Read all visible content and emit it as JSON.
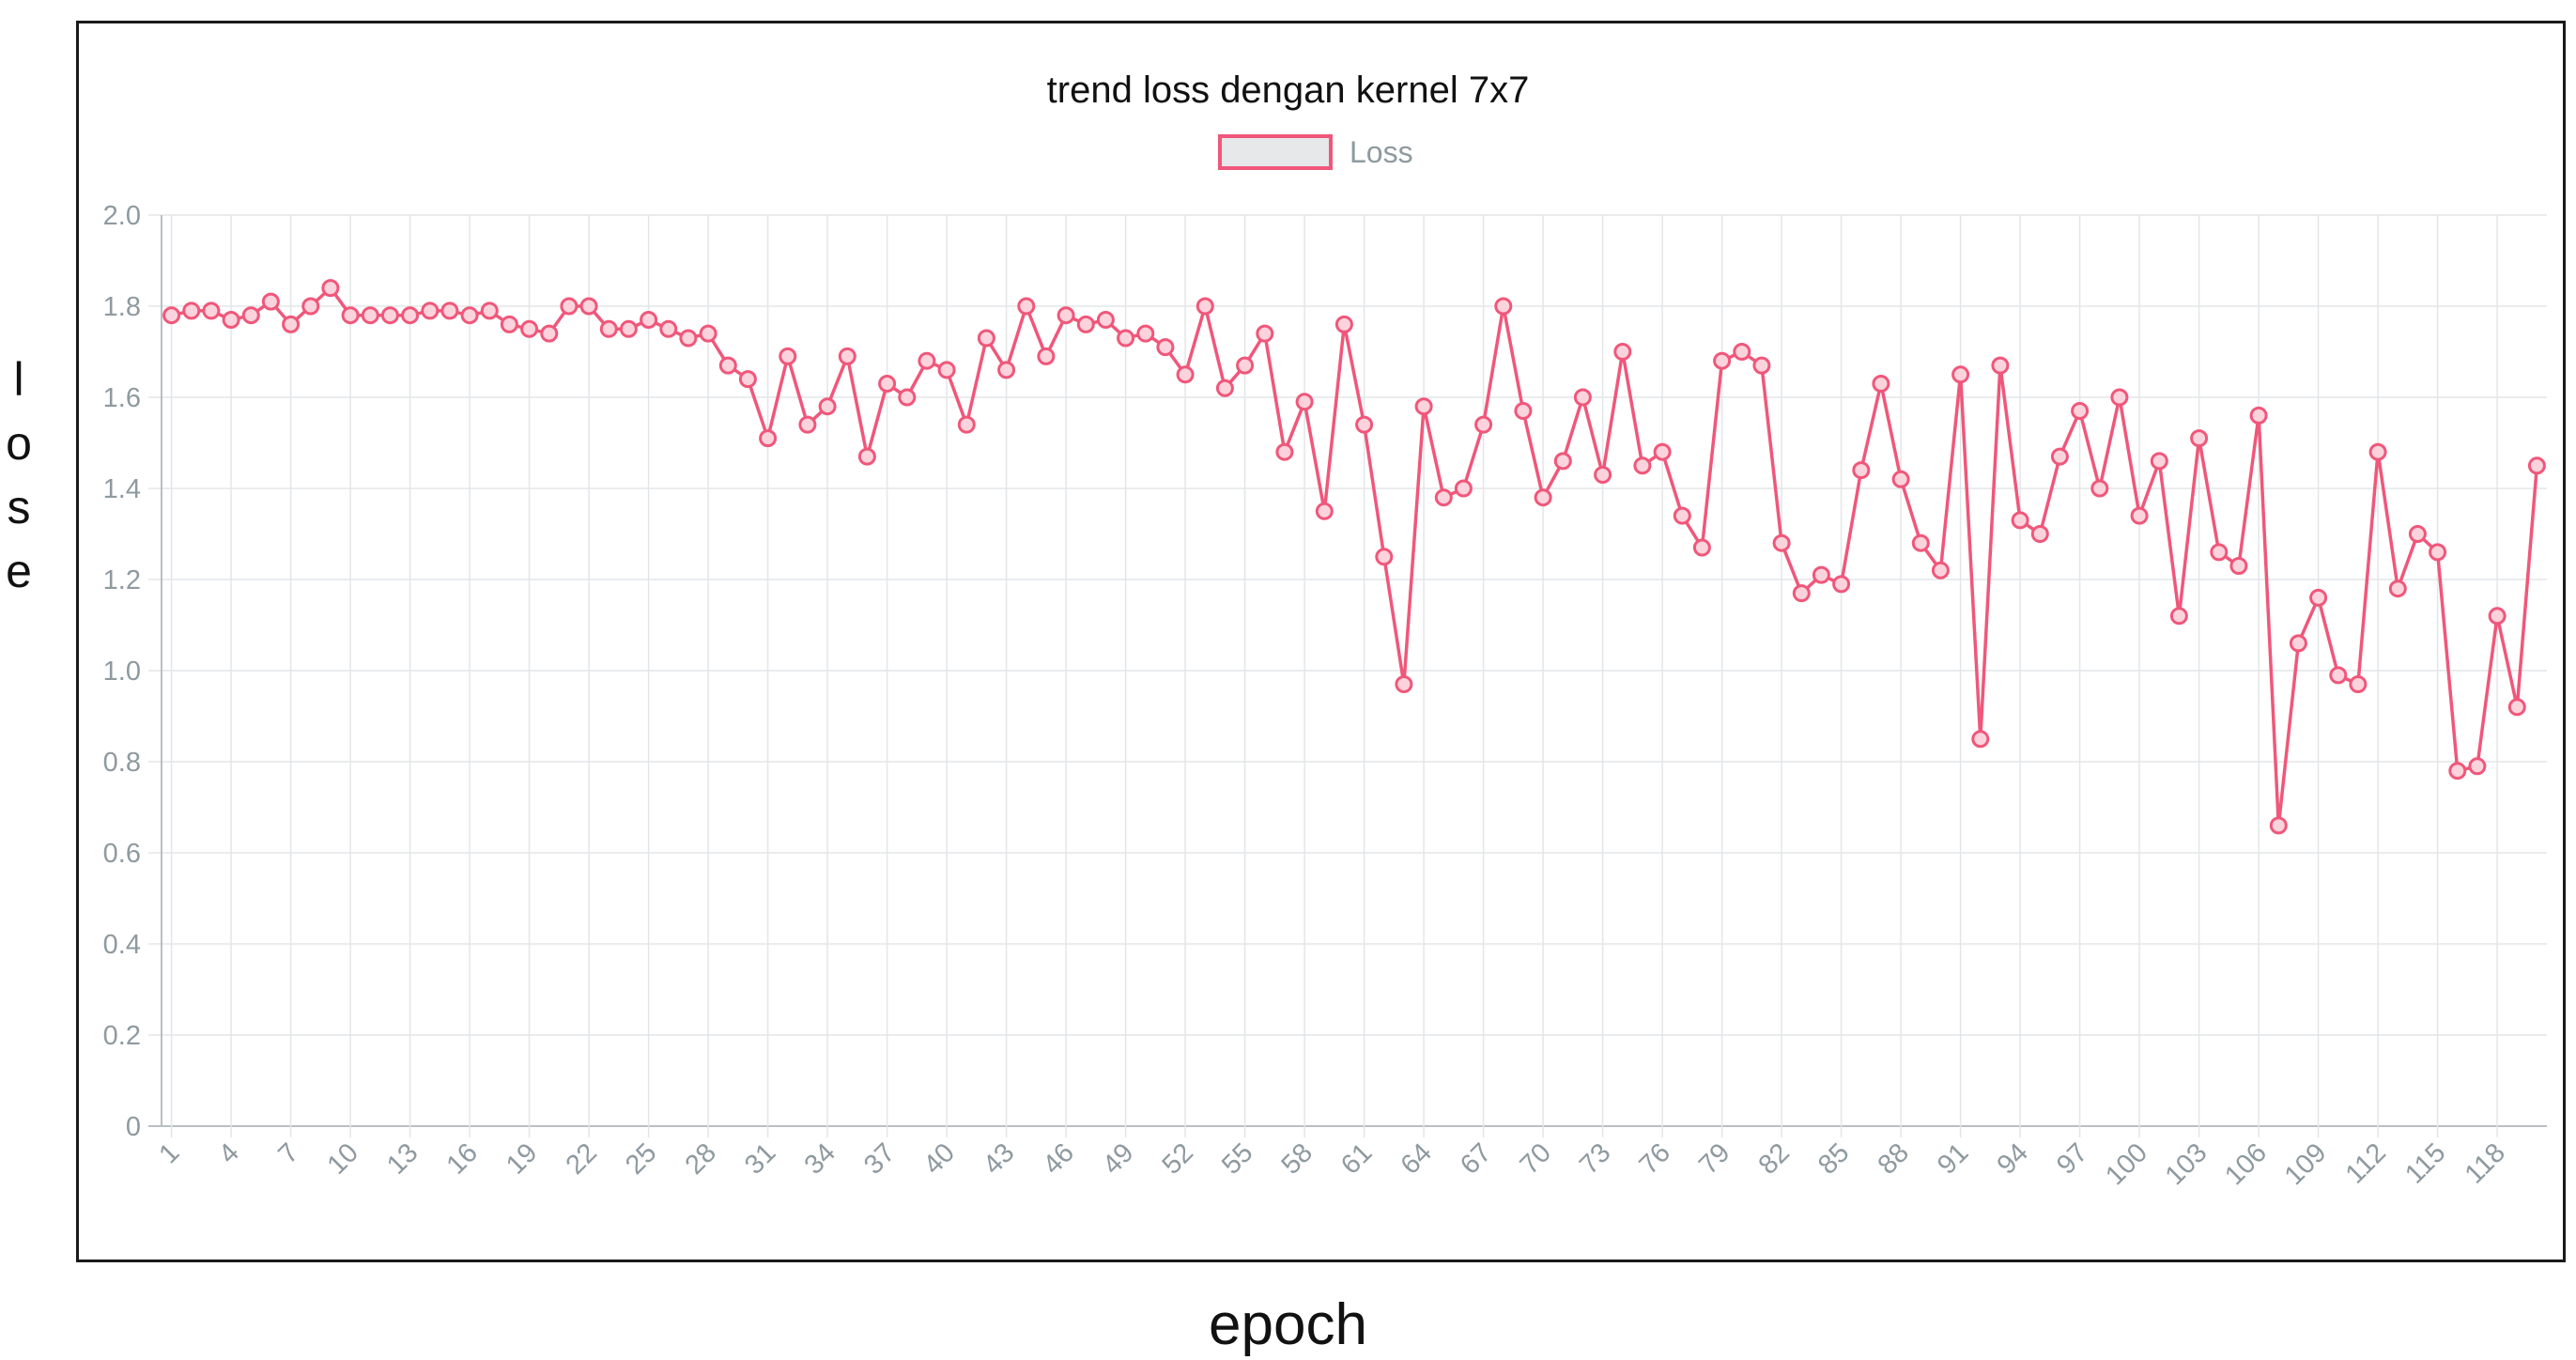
{
  "chart_data": {
    "type": "line",
    "title": "trend loss dengan kernel 7x7",
    "xlabel": "epoch",
    "ylabel": "lose",
    "ylim": [
      0,
      2.0
    ],
    "yticks": [
      "0",
      "0.2",
      "0.4",
      "0.6",
      "0.8",
      "1.0",
      "1.2",
      "1.4",
      "1.6",
      "1.8",
      "2.0"
    ],
    "xtick_labels": [
      "1",
      "4",
      "7",
      "10",
      "13",
      "16",
      "19",
      "22",
      "25",
      "28",
      "31",
      "34",
      "37",
      "40",
      "43",
      "46",
      "49",
      "52",
      "55",
      "58",
      "61",
      "64",
      "67",
      "70",
      "73",
      "76",
      "79",
      "82",
      "85",
      "88",
      "91",
      "94",
      "97",
      "100",
      "103",
      "106",
      "109",
      "112",
      "115",
      "118"
    ],
    "grid": true,
    "legend_position": "top-center",
    "series": [
      {
        "name": "Loss",
        "color": "#f0577a",
        "x": [
          1,
          2,
          3,
          4,
          5,
          6,
          7,
          8,
          9,
          10,
          11,
          12,
          13,
          14,
          15,
          16,
          17,
          18,
          19,
          20,
          21,
          22,
          23,
          24,
          25,
          26,
          27,
          28,
          29,
          30,
          31,
          32,
          33,
          34,
          35,
          36,
          37,
          38,
          39,
          40,
          41,
          42,
          43,
          44,
          45,
          46,
          47,
          48,
          49,
          50,
          51,
          52,
          53,
          54,
          55,
          56,
          57,
          58,
          59,
          60,
          61,
          62,
          63,
          64,
          65,
          66,
          67,
          68,
          69,
          70,
          71,
          72,
          73,
          74,
          75,
          76,
          77,
          78,
          79,
          80,
          81,
          82,
          83,
          84,
          85,
          86,
          87,
          88,
          89,
          90,
          91,
          92,
          93,
          94,
          95,
          96,
          97,
          98,
          99,
          100,
          101,
          102,
          103,
          104,
          105,
          106,
          107,
          108,
          109,
          110,
          111,
          112,
          113,
          114,
          115,
          116,
          117,
          118,
          119,
          120
        ],
        "values": [
          1.78,
          1.79,
          1.79,
          1.77,
          1.78,
          1.81,
          1.76,
          1.8,
          1.84,
          1.78,
          1.78,
          1.78,
          1.78,
          1.79,
          1.79,
          1.78,
          1.79,
          1.76,
          1.75,
          1.74,
          1.8,
          1.8,
          1.75,
          1.75,
          1.77,
          1.75,
          1.73,
          1.74,
          1.67,
          1.64,
          1.51,
          1.69,
          1.54,
          1.58,
          1.69,
          1.47,
          1.63,
          1.6,
          1.68,
          1.66,
          1.54,
          1.73,
          1.66,
          1.8,
          1.69,
          1.78,
          1.76,
          1.77,
          1.73,
          1.74,
          1.71,
          1.65,
          1.8,
          1.62,
          1.67,
          1.74,
          1.48,
          1.59,
          1.35,
          1.76,
          1.54,
          1.25,
          0.97,
          1.58,
          1.38,
          1.4,
          1.54,
          1.8,
          1.57,
          1.38,
          1.46,
          1.6,
          1.43,
          1.7,
          1.45,
          1.48,
          1.34,
          1.27,
          1.68,
          1.7,
          1.67,
          1.28,
          1.17,
          1.21,
          1.19,
          1.44,
          1.63,
          1.42,
          1.28,
          1.22,
          1.65,
          0.85,
          1.67,
          1.33,
          1.3,
          1.47,
          1.57,
          1.4,
          1.6,
          1.34,
          1.46,
          1.12,
          1.51,
          1.26,
          1.23,
          1.56,
          0.66,
          1.06,
          1.16,
          0.99,
          0.97,
          1.48,
          1.18,
          1.3,
          1.26,
          0.78,
          0.79,
          1.12,
          0.92,
          1.45
        ]
      }
    ]
  }
}
